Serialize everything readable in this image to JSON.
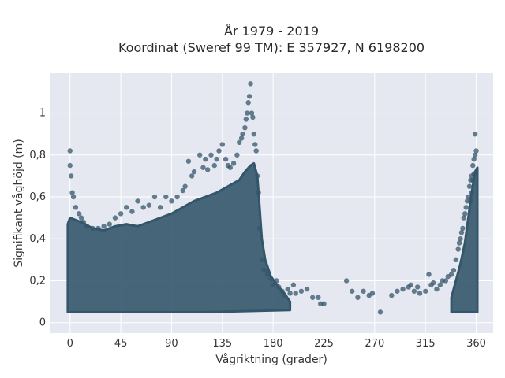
{
  "chart_data": {
    "type": "scatter",
    "title": "År 1979 - 2019",
    "subtitle": "Koordinat (Sweref 99 TM): E 357927, N 6198200",
    "xlabel": "Vågriktning (grader)",
    "ylabel": "Signifikant våghöjd (m)",
    "xlim": [
      -18,
      375
    ],
    "ylim": [
      -0.05,
      1.19
    ],
    "xticks": [
      0,
      45,
      90,
      135,
      180,
      225,
      270,
      315,
      360
    ],
    "xtick_labels": [
      "0",
      "45",
      "90",
      "135",
      "180",
      "225",
      "270",
      "315",
      "360"
    ],
    "yticks": [
      0,
      0.2,
      0.4,
      0.6,
      0.8,
      1
    ],
    "ytick_labels": [
      "0",
      "0,2",
      "0,4",
      "0,6",
      "0,8",
      "1"
    ],
    "grid": true,
    "colors": {
      "marker": "#34566b",
      "plot_bg": "#e5e8f0",
      "grid": "#ffffff"
    },
    "series": [
      {
        "x": [
          0,
          0,
          1,
          2,
          3,
          5,
          8,
          10,
          12,
          15,
          20,
          25,
          30,
          35,
          40,
          45,
          50,
          55,
          60,
          65,
          70,
          75,
          80,
          85,
          90,
          95,
          100,
          102,
          105,
          108,
          110,
          115,
          118,
          120,
          122,
          125,
          128,
          130,
          132,
          135,
          138,
          140,
          142,
          145,
          148,
          150,
          152,
          153,
          155,
          156,
          157,
          158,
          159,
          160,
          161,
          162,
          163,
          164,
          165,
          166,
          167,
          168,
          170,
          172,
          175,
          178,
          180,
          183,
          185,
          188,
          190,
          193,
          195,
          198,
          200,
          205,
          210,
          215,
          220,
          222,
          225,
          245,
          250,
          255,
          260,
          265,
          268,
          275,
          285,
          290,
          295,
          300,
          302,
          305,
          308,
          310,
          315,
          318,
          320,
          322,
          325,
          328,
          330,
          333,
          335,
          338,
          340,
          342,
          344,
          345,
          346,
          347,
          348,
          349,
          350,
          351,
          352,
          353,
          354,
          355,
          356,
          357,
          358,
          359,
          360,
          359,
          358,
          357,
          356,
          355
        ],
        "y": [
          0.82,
          0.75,
          0.7,
          0.62,
          0.6,
          0.55,
          0.52,
          0.5,
          0.48,
          0.46,
          0.45,
          0.45,
          0.46,
          0.47,
          0.5,
          0.52,
          0.55,
          0.53,
          0.58,
          0.55,
          0.56,
          0.6,
          0.55,
          0.6,
          0.58,
          0.6,
          0.63,
          0.65,
          0.77,
          0.7,
          0.72,
          0.8,
          0.74,
          0.78,
          0.73,
          0.8,
          0.75,
          0.78,
          0.82,
          0.85,
          0.78,
          0.75,
          0.74,
          0.76,
          0.8,
          0.86,
          0.88,
          0.9,
          0.93,
          0.97,
          1.0,
          1.05,
          1.08,
          1.14,
          1.0,
          0.98,
          0.9,
          0.85,
          0.82,
          0.7,
          0.62,
          0.45,
          0.3,
          0.25,
          0.23,
          0.21,
          0.18,
          0.2,
          0.17,
          0.15,
          0.13,
          0.16,
          0.14,
          0.18,
          0.14,
          0.15,
          0.16,
          0.12,
          0.12,
          0.09,
          0.09,
          0.2,
          0.15,
          0.12,
          0.15,
          0.13,
          0.14,
          0.05,
          0.13,
          0.15,
          0.16,
          0.17,
          0.18,
          0.15,
          0.17,
          0.14,
          0.15,
          0.23,
          0.18,
          0.19,
          0.16,
          0.18,
          0.2,
          0.2,
          0.22,
          0.23,
          0.25,
          0.3,
          0.35,
          0.38,
          0.4,
          0.43,
          0.45,
          0.5,
          0.52,
          0.55,
          0.58,
          0.6,
          0.65,
          0.68,
          0.7,
          0.75,
          0.78,
          0.8,
          0.82,
          0.9,
          0.71,
          0.68,
          0.62,
          0.58
        ]
      }
    ]
  }
}
